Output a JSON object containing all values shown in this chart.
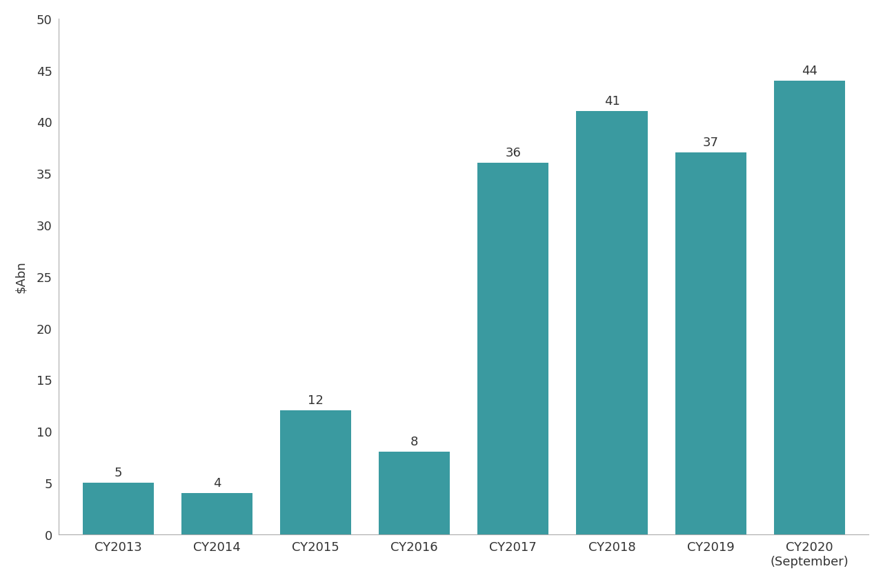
{
  "categories": [
    "CY2013",
    "CY2014",
    "CY2015",
    "CY2016",
    "CY2017",
    "CY2018",
    "CY2019",
    "CY2020\n(September)"
  ],
  "values": [
    5,
    4,
    12,
    8,
    36,
    41,
    37,
    44
  ],
  "bar_color": "#3a9aa0",
  "ylabel": "$Abn",
  "ylim": [
    0,
    50
  ],
  "yticks": [
    0,
    5,
    10,
    15,
    20,
    25,
    30,
    35,
    40,
    45,
    50
  ],
  "background_color": "#ffffff",
  "tick_fontsize": 13,
  "ylabel_fontsize": 13,
  "bar_label_fontsize": 13,
  "bar_width": 0.72
}
